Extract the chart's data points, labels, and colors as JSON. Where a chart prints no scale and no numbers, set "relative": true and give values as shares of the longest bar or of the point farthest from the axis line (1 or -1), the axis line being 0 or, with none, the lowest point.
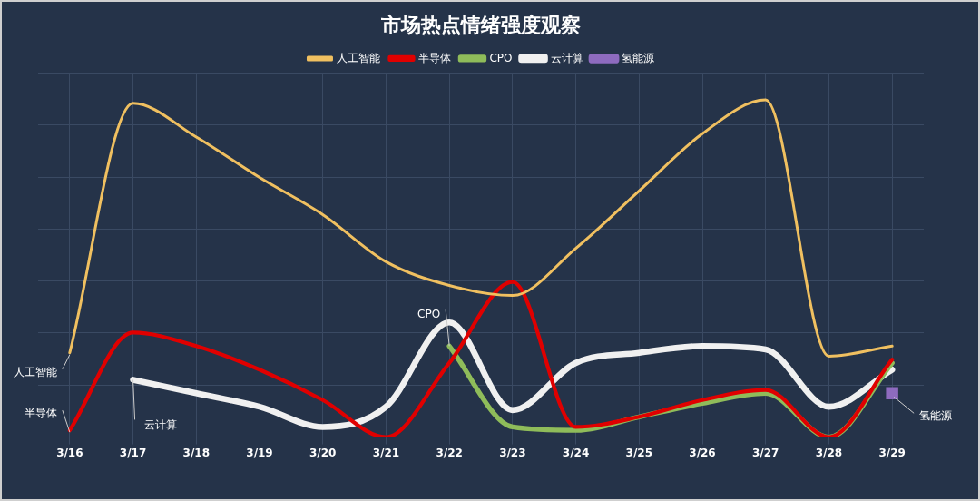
{
  "chart_data": {
    "type": "line",
    "title": "市场热点情绪强度观察",
    "relative": true,
    "grid": true,
    "legend": "top",
    "marker": "none",
    "line_style": "solid",
    "categories": [
      "3/16",
      "3/17",
      "3/18",
      "3/19",
      "3/20",
      "3/21",
      "3/22",
      "3/23",
      "3/24",
      "3/25",
      "3/26",
      "3/27",
      "3/28",
      "3/29"
    ],
    "series": [
      {
        "name": "人工智能",
        "color": "#f0c060",
        "values": [
          0.25,
          0.99,
          0.89,
          0.77,
          0.66,
          0.52,
          0.45,
          0.42,
          0.56,
          0.73,
          0.9,
          1,
          0.24,
          0.27
        ]
      },
      {
        "name": "半导体",
        "color": "#e00000",
        "values": [
          0.02,
          0.31,
          0.27,
          0.2,
          0.11,
          0,
          0.22,
          0.46,
          0.03,
          0.06,
          0.11,
          0.14,
          0,
          0.23
        ]
      },
      {
        "name": "CPO",
        "color": "#8fbc5a",
        "values": [
          null,
          null,
          null,
          null,
          null,
          null,
          0.27,
          0.03,
          0.02,
          0.06,
          0.1,
          0.13,
          0,
          0.22
        ]
      },
      {
        "name": "云计算",
        "color": "#f0f0f0",
        "values": [
          null,
          0.17,
          0.13,
          0.09,
          0.03,
          0.09,
          0.34,
          0.08,
          0.22,
          0.25,
          0.27,
          0.26,
          0.09,
          0.2
        ]
      },
      {
        "name": "氢能源",
        "color": "#8e6bbf",
        "marker": "square",
        "values": [
          null,
          null,
          null,
          null,
          null,
          null,
          null,
          null,
          null,
          null,
          null,
          null,
          null,
          0.13
        ]
      }
    ]
  }
}
